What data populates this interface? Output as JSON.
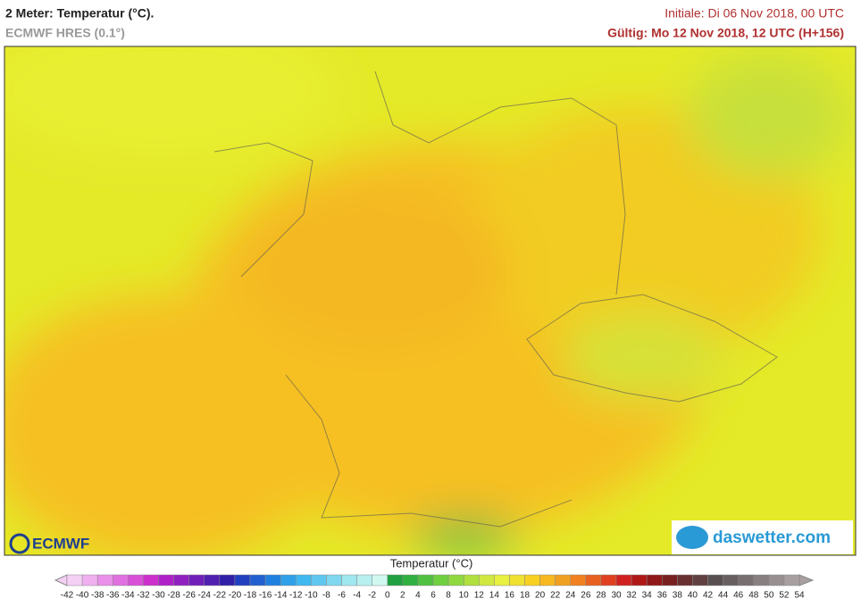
{
  "header": {
    "title": "2 Meter: Temperatur (°C).",
    "subtitle": "ECMWF HRES (0.1°)",
    "initial": "Initiale: Di 06 Nov 2018, 00 UTC",
    "valid": "Gültig: Mo 12 Nov 2018, 12 UTC (H+156)"
  },
  "logos": {
    "left": "ECMWF",
    "right": "daswetter.com"
  },
  "colorbar": {
    "title": "Temperatur (°C)",
    "labels": [
      -42,
      -40,
      -38,
      -36,
      -34,
      -32,
      -30,
      -28,
      -26,
      -24,
      -22,
      -20,
      -18,
      -16,
      -14,
      -12,
      -10,
      -8,
      -6,
      -4,
      -2,
      0,
      2,
      4,
      6,
      8,
      10,
      12,
      14,
      16,
      18,
      20,
      22,
      24,
      26,
      28,
      30,
      32,
      34,
      36,
      38,
      40,
      42,
      44,
      46,
      48,
      50,
      52,
      54
    ],
    "colors": [
      "#f5d0f5",
      "#f0b0f0",
      "#ea90ea",
      "#e070e0",
      "#d850d8",
      "#cc30cc",
      "#b020c8",
      "#9020c0",
      "#7020b8",
      "#5020b0",
      "#3020a8",
      "#2040c0",
      "#2060d0",
      "#2080e0",
      "#30a0e8",
      "#40b8f0",
      "#60c8f0",
      "#80d8f0",
      "#a0e8f0",
      "#b8f0f0",
      "#d0f8f0",
      "#20a040",
      "#30b040",
      "#50c040",
      "#70d040",
      "#90d840",
      "#b0e040",
      "#d0e840",
      "#e8f040",
      "#f0e030",
      "#f8d020",
      "#f8b820",
      "#f0a020",
      "#f08020",
      "#e86020",
      "#e04020",
      "#d02020",
      "#b01818",
      "#901818",
      "#782020",
      "#683030",
      "#604040",
      "#585050",
      "#686060",
      "#787070",
      "#888080",
      "#989090",
      "#a8a0a0"
    ]
  }
}
